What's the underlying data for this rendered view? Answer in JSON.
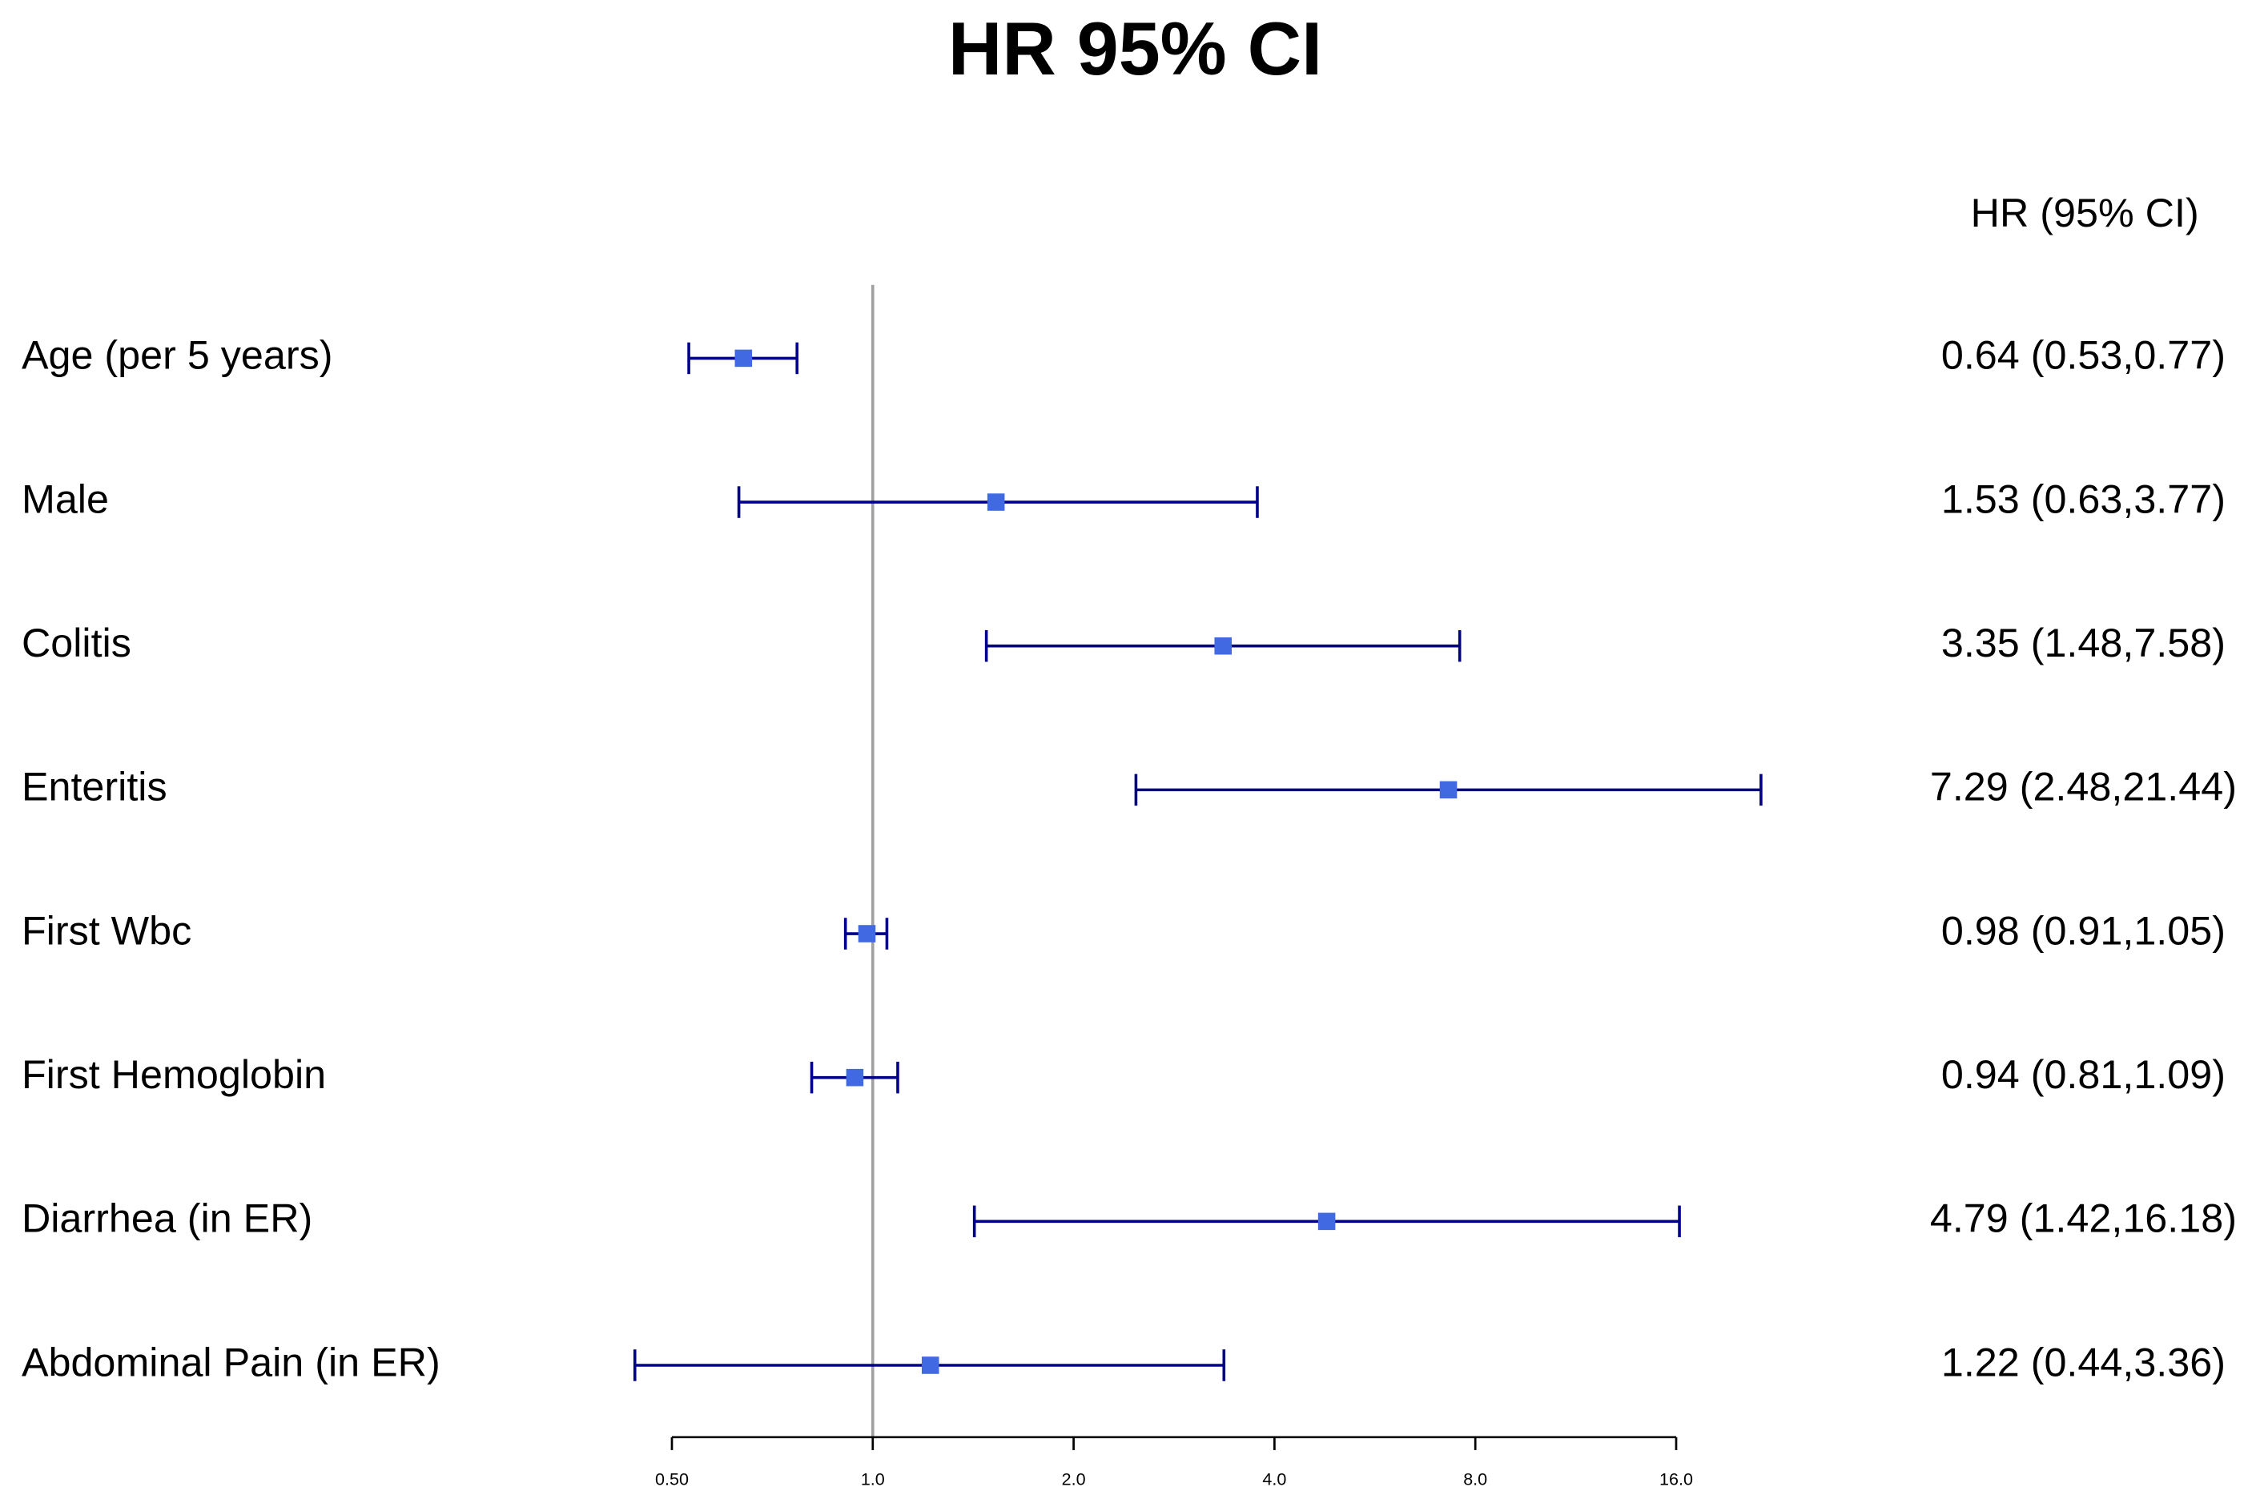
{
  "chart_data": {
    "type": "forest",
    "title": "HR 95% CI",
    "column_header": "HR (95% CI)",
    "categories": [
      "Age (per 5 years)",
      "Male",
      "Colitis",
      "Enteritis",
      "First Wbc",
      "First Hemoglobin",
      "Diarrhea (in ER)",
      "Abdominal Pain (in ER)"
    ],
    "values": [
      0.64,
      1.53,
      3.35,
      7.29,
      0.98,
      0.94,
      4.79,
      1.22
    ],
    "lower": [
      0.53,
      0.63,
      1.48,
      2.48,
      0.91,
      0.81,
      1.42,
      0.44
    ],
    "upper": [
      0.77,
      3.77,
      7.58,
      21.44,
      1.05,
      1.09,
      16.18,
      3.36
    ],
    "value_labels": [
      "0.64 (0.53,0.77)",
      "1.53 (0.63,3.77)",
      "3.35 (1.48,7.58)",
      "7.29 (2.48,21.44)",
      "0.98 (0.91,1.05)",
      "0.94 (0.81,1.09)",
      "4.79 (1.42,16.18)",
      "1.22 (0.44,3.36)"
    ],
    "xscale": "log",
    "xlim": [
      0.5,
      16
    ],
    "xticks": [
      {
        "value": 0.5,
        "label": "0.50"
      },
      {
        "value": 1,
        "label": "1.0"
      },
      {
        "value": 2,
        "label": "2.0"
      },
      {
        "value": 4,
        "label": "4.0"
      },
      {
        "value": 8,
        "label": "8.0"
      },
      {
        "value": 16,
        "label": "16.0"
      }
    ],
    "reference_line": 1,
    "color": "#4169e1",
    "whisker_color": "#00008b",
    "reference_color": "#a0a0a0",
    "grid": false
  }
}
